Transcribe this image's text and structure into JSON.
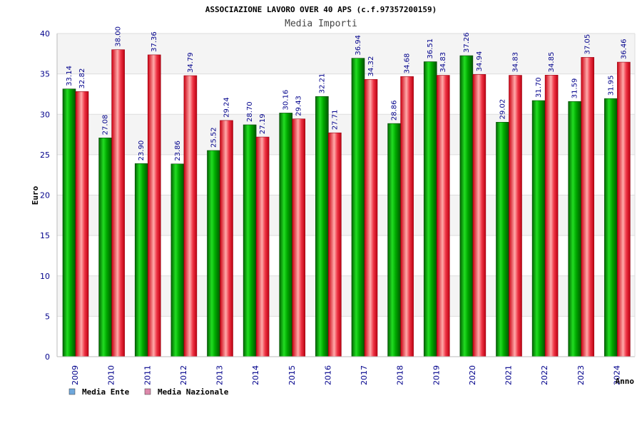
{
  "chart_data": {
    "type": "bar",
    "title": "ASSOCIAZIONE LAVORO OVER 40 APS (c.f.97357200159)",
    "subtitle": "Media Importi",
    "xlabel": "Anno",
    "ylabel": "Euro",
    "ylim": [
      0,
      40
    ],
    "yticks": [
      0,
      5,
      10,
      15,
      20,
      25,
      30,
      35,
      40
    ],
    "grid": true,
    "legend_position": "bottom-left",
    "categories": [
      "2009",
      "2010",
      "2011",
      "2012",
      "2013",
      "2014",
      "2015",
      "2016",
      "2017",
      "2018",
      "2019",
      "2020",
      "2021",
      "2022",
      "2023",
      "2024"
    ],
    "series": [
      {
        "name": "Media Ente",
        "color": "#00aa00",
        "legend_color": "#6fa8dc",
        "values": [
          33.14,
          27.08,
          23.9,
          23.86,
          25.52,
          28.7,
          30.16,
          32.21,
          36.94,
          28.86,
          36.51,
          37.26,
          29.02,
          31.7,
          31.59,
          31.95
        ],
        "labels": [
          "33.14",
          "27.08",
          "23.90",
          "23.86",
          "25.52",
          "28.70",
          "30.16",
          "32.21",
          "36.94",
          "28.86",
          "36.51",
          "37.26",
          "29.02",
          "31.70",
          "31.59",
          "31.95"
        ]
      },
      {
        "name": "Media Nazionale",
        "color": "#ee1122",
        "legend_color": "#dd88aa",
        "values": [
          32.82,
          38.0,
          37.36,
          34.79,
          29.24,
          27.19,
          29.43,
          27.71,
          34.32,
          34.68,
          34.83,
          34.94,
          34.83,
          34.85,
          37.05,
          36.46
        ],
        "labels": [
          "32.82",
          "38.00",
          "37.36",
          "34.79",
          "29.24",
          "27.19",
          "29.43",
          "27.71",
          "34.32",
          "34.68",
          "34.83",
          "34.94",
          "34.83",
          "34.85",
          "37.05",
          "36.46"
        ]
      }
    ]
  }
}
